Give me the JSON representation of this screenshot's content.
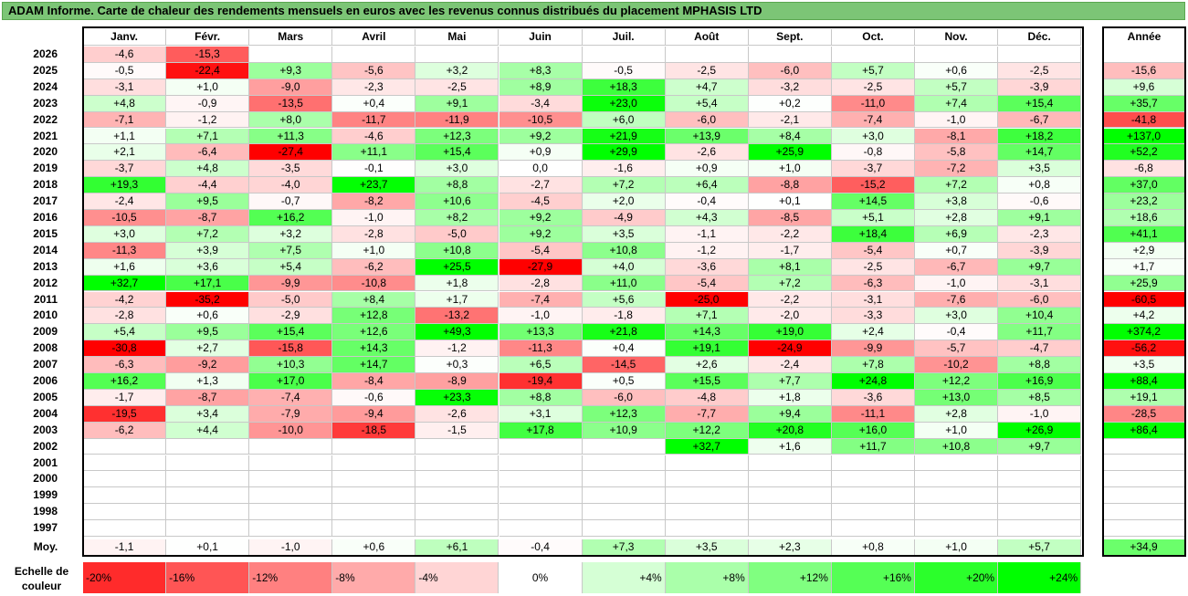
{
  "title": "ADAM Informe. Carte de chaleur des rendements mensuels en euros avec les revenus connus distribués du placement MPHASIS LTD",
  "chart_data": {
    "type": "heatmap",
    "months": [
      "Janv.",
      "Févr.",
      "Mars",
      "Avril",
      "Mai",
      "Juin",
      "Juil.",
      "Août",
      "Sept.",
      "Oct.",
      "Nov.",
      "Déc."
    ],
    "year_header": "Année",
    "rows": [
      {
        "year": "2026",
        "m": [
          -4.6,
          -15.3,
          null,
          null,
          null,
          null,
          null,
          null,
          null,
          null,
          null,
          null
        ],
        "y": null
      },
      {
        "year": "2025",
        "m": [
          -0.5,
          -22.4,
          9.3,
          -5.6,
          3.2,
          8.3,
          -0.5,
          -2.5,
          -6.0,
          5.7,
          0.6,
          -2.5
        ],
        "y": -15.6
      },
      {
        "year": "2024",
        "m": [
          -3.1,
          1.0,
          -9.0,
          -2.3,
          -2.5,
          8.9,
          18.3,
          4.7,
          -3.2,
          -2.5,
          5.7,
          -3.9
        ],
        "y": 9.6
      },
      {
        "year": "2023",
        "m": [
          4.8,
          -0.9,
          -13.5,
          0.4,
          9.1,
          -3.4,
          23.0,
          5.4,
          0.2,
          -11.0,
          7.4,
          15.4
        ],
        "y": 35.7
      },
      {
        "year": "2022",
        "m": [
          -7.1,
          -1.2,
          8.0,
          -11.7,
          -11.9,
          -10.5,
          6.0,
          -6.0,
          -2.1,
          -7.4,
          -1.0,
          -6.7
        ],
        "y": -41.8
      },
      {
        "year": "2021",
        "m": [
          1.1,
          7.1,
          11.3,
          -4.6,
          12.3,
          9.2,
          21.9,
          13.9,
          8.4,
          3.0,
          -8.1,
          18.2
        ],
        "y": 137.0
      },
      {
        "year": "2020",
        "m": [
          2.1,
          -6.4,
          -27.4,
          11.1,
          15.4,
          0.9,
          29.9,
          -2.6,
          25.9,
          -0.8,
          -5.8,
          14.7
        ],
        "y": 52.2
      },
      {
        "year": "2019",
        "m": [
          -3.7,
          4.8,
          -3.5,
          -0.1,
          3.0,
          0.0,
          -1.6,
          0.9,
          1.0,
          -3.7,
          -7.2,
          3.5
        ],
        "y": -6.8
      },
      {
        "year": "2018",
        "m": [
          19.3,
          -4.4,
          -4.0,
          23.7,
          8.8,
          -2.7,
          7.2,
          6.4,
          -8.8,
          -15.2,
          7.2,
          0.8
        ],
        "y": 37.0
      },
      {
        "year": "2017",
        "m": [
          -2.4,
          9.5,
          -0.7,
          -8.2,
          10.6,
          -4.5,
          2.0,
          -0.4,
          0.1,
          14.5,
          3.8,
          -0.6
        ],
        "y": 23.2
      },
      {
        "year": "2016",
        "m": [
          -10.5,
          -8.7,
          16.2,
          -1.0,
          8.2,
          9.2,
          -4.9,
          4.3,
          -8.5,
          5.1,
          2.8,
          9.1
        ],
        "y": 18.6
      },
      {
        "year": "2015",
        "m": [
          3.0,
          7.2,
          3.2,
          -2.8,
          -5.0,
          9.2,
          3.5,
          -1.1,
          -2.2,
          18.4,
          6.9,
          -2.3
        ],
        "y": 41.1
      },
      {
        "year": "2014",
        "m": [
          -11.3,
          3.9,
          7.5,
          1.0,
          10.8,
          -5.4,
          10.8,
          -1.2,
          -1.7,
          -5.4,
          0.7,
          -3.9
        ],
        "y": 2.9
      },
      {
        "year": "2013",
        "m": [
          1.6,
          3.6,
          5.4,
          -6.2,
          25.5,
          -27.9,
          4.0,
          -3.6,
          8.1,
          -2.5,
          -6.7,
          9.7
        ],
        "y": 1.7
      },
      {
        "year": "2012",
        "m": [
          32.7,
          17.1,
          -9.9,
          -10.8,
          1.8,
          -2.8,
          11.0,
          -5.4,
          7.2,
          -6.3,
          -1.0,
          -3.1
        ],
        "y": 25.9
      },
      {
        "year": "2011",
        "m": [
          -4.2,
          -35.2,
          -5.0,
          8.4,
          1.7,
          -7.4,
          5.6,
          -25.0,
          -2.2,
          -3.1,
          -7.6,
          -6.0
        ],
        "y": -60.5
      },
      {
        "year": "2010",
        "m": [
          -2.8,
          0.6,
          -2.9,
          12.8,
          -13.2,
          -1.0,
          -1.8,
          7.1,
          -2.0,
          -3.3,
          3.0,
          10.4
        ],
        "y": 4.2
      },
      {
        "year": "2009",
        "m": [
          5.4,
          9.5,
          15.4,
          12.6,
          49.3,
          13.3,
          21.8,
          14.3,
          19.0,
          2.4,
          -0.4,
          11.7
        ],
        "y": 374.2
      },
      {
        "year": "2008",
        "m": [
          -30.8,
          2.7,
          -15.8,
          14.3,
          -1.2,
          -11.3,
          0.4,
          19.1,
          -24.9,
          -9.9,
          -5.7,
          -4.7
        ],
        "y": -56.2
      },
      {
        "year": "2007",
        "m": [
          -6.3,
          -9.2,
          10.3,
          14.7,
          0.3,
          6.5,
          -14.5,
          2.6,
          -2.4,
          7.8,
          -10.2,
          8.8
        ],
        "y": 3.5
      },
      {
        "year": "2006",
        "m": [
          16.2,
          1.3,
          17.0,
          -8.4,
          -8.9,
          -19.4,
          0.5,
          15.5,
          7.7,
          24.8,
          12.2,
          16.9
        ],
        "y": 88.4
      },
      {
        "year": "2005",
        "m": [
          -1.7,
          -8.7,
          -7.4,
          -0.6,
          23.3,
          8.8,
          -6.0,
          -4.8,
          1.8,
          -3.6,
          13.0,
          8.5
        ],
        "y": 19.1
      },
      {
        "year": "2004",
        "m": [
          -19.5,
          3.4,
          -7.9,
          -9.4,
          -2.6,
          3.1,
          12.3,
          -7.7,
          9.4,
          -11.1,
          2.8,
          -1.0
        ],
        "y": -28.5
      },
      {
        "year": "2003",
        "m": [
          -6.2,
          4.4,
          -10.0,
          -18.5,
          -1.5,
          17.8,
          10.9,
          12.2,
          20.8,
          16.0,
          1.0,
          26.9
        ],
        "y": 86.4
      },
      {
        "year": "2002",
        "m": [
          null,
          null,
          null,
          null,
          null,
          null,
          null,
          32.7,
          1.6,
          11.7,
          10.8,
          9.7
        ],
        "y": null
      },
      {
        "year": "2001",
        "m": [
          null,
          null,
          null,
          null,
          null,
          null,
          null,
          null,
          null,
          null,
          null,
          null
        ],
        "y": null
      },
      {
        "year": "2000",
        "m": [
          null,
          null,
          null,
          null,
          null,
          null,
          null,
          null,
          null,
          null,
          null,
          null
        ],
        "y": null
      },
      {
        "year": "1999",
        "m": [
          null,
          null,
          null,
          null,
          null,
          null,
          null,
          null,
          null,
          null,
          null,
          null
        ],
        "y": null
      },
      {
        "year": "1998",
        "m": [
          null,
          null,
          null,
          null,
          null,
          null,
          null,
          null,
          null,
          null,
          null,
          null
        ],
        "y": null
      },
      {
        "year": "1997",
        "m": [
          null,
          null,
          null,
          null,
          null,
          null,
          null,
          null,
          null,
          null,
          null,
          null
        ],
        "y": null
      }
    ],
    "average": {
      "label": "Moy.",
      "m": [
        -1.1,
        0.1,
        -1.0,
        0.6,
        6.1,
        -0.4,
        7.3,
        3.5,
        2.3,
        0.8,
        1.0,
        5.7
      ],
      "y": 34.9
    },
    "scale": {
      "label": "Echelle de couleur",
      "stops": [
        {
          "text": "-20%",
          "value": -20,
          "align": "left"
        },
        {
          "text": "-16%",
          "value": -16,
          "align": "left"
        },
        {
          "text": "-12%",
          "value": -12,
          "align": "left"
        },
        {
          "text": "-8%",
          "value": -8,
          "align": "left"
        },
        {
          "text": "-4%",
          "value": -4,
          "align": "left"
        },
        {
          "text": "0%",
          "value": 0,
          "align": "center"
        },
        {
          "text": "+4%",
          "value": 4,
          "align": "right"
        },
        {
          "text": "+8%",
          "value": 8,
          "align": "right"
        },
        {
          "text": "+12%",
          "value": 12,
          "align": "right"
        },
        {
          "text": "+16%",
          "value": 16,
          "align": "right"
        },
        {
          "text": "+20%",
          "value": 20,
          "align": "right"
        },
        {
          "text": "+24%",
          "value": 24,
          "align": "right"
        }
      ]
    },
    "colors": {
      "negative_max": "#ff0000",
      "positive_max": "#00ff00",
      "neutral": "#ffffff"
    }
  }
}
